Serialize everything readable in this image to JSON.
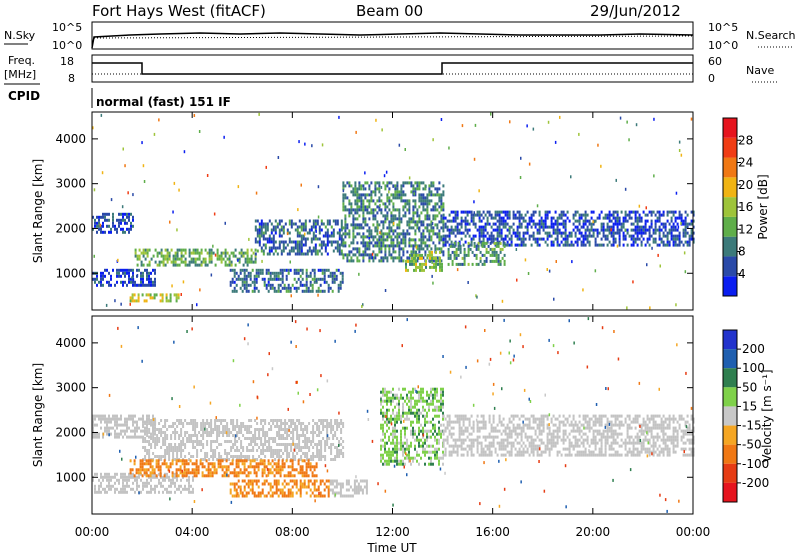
{
  "header": {
    "station": "Fort Hays West (fitACF)",
    "beam": "Beam 00",
    "date": "29/Jun/2012"
  },
  "param_labels": {
    "nsky": "N.Sky",
    "nsearch": "N.Search",
    "freq_1": "Freq.",
    "freq_2": "[MHz]",
    "nave": "Nave",
    "cpid": "CPID",
    "cpid_value": "normal (fast) 151 IF"
  },
  "noise_axis": {
    "left_ticks": [
      "10^5",
      "10^0"
    ],
    "right_ticks": [
      "10^5",
      "10^0"
    ]
  },
  "freq_axis": {
    "left_ticks": [
      "18",
      "8"
    ],
    "right_ticks": [
      "60",
      "0"
    ]
  },
  "colors": {
    "power_scale": [
      "#0a1ef0",
      "#2a4aa8",
      "#3c7a7a",
      "#5fae4a",
      "#9ec43a",
      "#f0b414",
      "#f07814",
      "#f03c14",
      "#e6141e"
    ],
    "velocity_scale": [
      "#2233cc",
      "#1f5fb0",
      "#2f7f4f",
      "#7fd14a",
      "#c8c8c8",
      "#f5a623",
      "#f07814",
      "#e63c14",
      "#e6141e"
    ],
    "ground_scatter": "#c3c3c3"
  },
  "chart_data": [
    {
      "type": "heatmap",
      "name": "power",
      "x_range_hours": [
        0,
        24
      ],
      "y_range_km": [
        180,
        4600
      ],
      "ylabel": "Slant Range [km]",
      "y_ticks": [
        1000,
        2000,
        3000,
        4000
      ],
      "colorbar": {
        "label": "Power [dB]",
        "ticks": [
          4,
          8,
          12,
          16,
          20,
          24,
          28
        ],
        "range": [
          0,
          32
        ]
      },
      "regions": [
        {
          "t0": 0.0,
          "t1": 1.6,
          "r0": 1900,
          "r1": 2350,
          "v": 6
        },
        {
          "t0": 0.0,
          "t1": 2.5,
          "r0": 700,
          "r1": 1100,
          "v": 5
        },
        {
          "t0": 1.7,
          "t1": 6.5,
          "r0": 1150,
          "r1": 1550,
          "v": 14
        },
        {
          "t0": 6.5,
          "t1": 10.0,
          "r0": 1400,
          "r1": 2200,
          "v": 8
        },
        {
          "t0": 5.5,
          "t1": 10.0,
          "r0": 600,
          "r1": 1100,
          "v": 8
        },
        {
          "t0": 10.0,
          "t1": 14.0,
          "r0": 1300,
          "r1": 3050,
          "v": 10
        },
        {
          "t0": 12.5,
          "t1": 14.0,
          "r0": 1050,
          "r1": 1500,
          "v": 16
        },
        {
          "t0": 14.0,
          "t1": 24.0,
          "r0": 1600,
          "r1": 2400,
          "v": 6
        },
        {
          "t0": 14.2,
          "t1": 16.5,
          "r0": 1200,
          "r1": 1700,
          "v": 12
        },
        {
          "t0": 1.5,
          "t1": 3.5,
          "r0": 350,
          "r1": 550,
          "v": 18
        }
      ]
    },
    {
      "type": "heatmap",
      "name": "velocity",
      "x_range_hours": [
        0,
        24
      ],
      "y_range_km": [
        180,
        4600
      ],
      "xlabel": "Time UT",
      "ylabel": "Slant Range [km]",
      "x_ticks": [
        "00:00",
        "04:00",
        "08:00",
        "12:00",
        "16:00",
        "20:00",
        "00:00"
      ],
      "y_ticks": [
        1000,
        2000,
        3000,
        4000
      ],
      "colorbar": {
        "label": "Velocity [m s⁻¹]",
        "ticks": [
          "200",
          "100",
          "50",
          "15",
          "-15",
          "-50",
          "-100",
          "-200"
        ]
      },
      "regions": [
        {
          "t0": 0.0,
          "t1": 2.5,
          "r0": 1900,
          "r1": 2400,
          "v": "gs"
        },
        {
          "t0": 0.0,
          "t1": 4.0,
          "r0": 650,
          "r1": 1100,
          "v": "gs"
        },
        {
          "t0": 2.0,
          "t1": 10.0,
          "r0": 1400,
          "r1": 2300,
          "v": "gs"
        },
        {
          "t0": 1.5,
          "t1": 9.0,
          "r0": 1000,
          "r1": 1400,
          "v": -60
        },
        {
          "t0": 5.5,
          "t1": 9.5,
          "r0": 600,
          "r1": 950,
          "v": -60
        },
        {
          "t0": 9.5,
          "t1": 11.0,
          "r0": 600,
          "r1": 950,
          "v": "gs"
        },
        {
          "t0": 11.5,
          "t1": 14.0,
          "r0": 1300,
          "r1": 3000,
          "v": 30
        },
        {
          "t0": 14.0,
          "t1": 24.0,
          "r0": 1500,
          "r1": 2400,
          "v": "gs"
        }
      ]
    }
  ]
}
